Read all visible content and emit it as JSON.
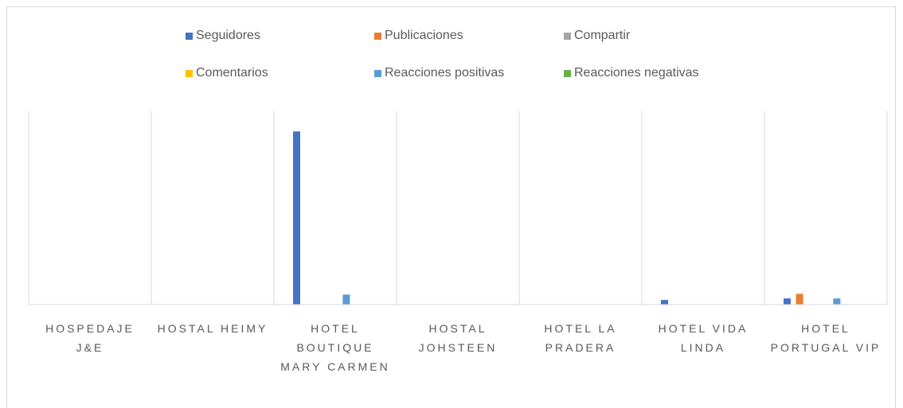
{
  "chart_data": {
    "type": "bar",
    "categories": [
      "HOSPEDAJE J&E",
      "HOSTAL HEIMY",
      "HOTEL BOUTIQUE MARY CARMEN",
      "HOSTAL JOHSTEEN",
      "HOTEL LA PRADERA",
      "HOTEL VIDA LINDA",
      "HOTEL PORTUGAL VIP"
    ],
    "series": [
      {
        "name": "Seguidores",
        "color": "#4472c4",
        "values": [
          0,
          0,
          2240,
          0,
          0,
          60,
          80
        ]
      },
      {
        "name": "Publicaciones",
        "color": "#ed7d31",
        "values": [
          0,
          0,
          0,
          0,
          0,
          0,
          140
        ]
      },
      {
        "name": "Compartir",
        "color": "#a5a5a5",
        "values": [
          0,
          0,
          0,
          0,
          0,
          0,
          0
        ]
      },
      {
        "name": "Comentarios",
        "color": "#ffc000",
        "values": [
          0,
          0,
          0,
          0,
          0,
          0,
          0
        ]
      },
      {
        "name": "Reacciones positivas",
        "color": "#5b9bd5",
        "values": [
          0,
          0,
          130,
          0,
          0,
          0,
          80
        ]
      },
      {
        "name": "Reacciones negativas",
        "color": "#70ad47",
        "values": [
          0,
          0,
          0,
          0,
          0,
          0,
          0
        ]
      }
    ],
    "ylim": [
      0,
      2500
    ],
    "legend": "top"
  }
}
